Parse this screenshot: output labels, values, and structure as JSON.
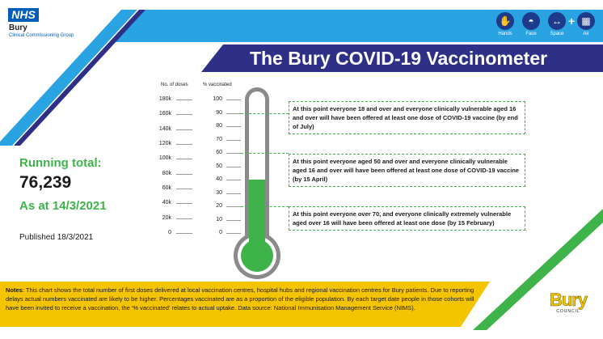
{
  "header": {
    "nhs_badge": "NHS",
    "org_name": "Bury",
    "org_sub": "Clinical Commissioning Group",
    "title": "The Bury COVID-19 Vaccinometer"
  },
  "safety_icons": [
    {
      "name": "hands-icon",
      "glyph": "✋",
      "caption": "Hands"
    },
    {
      "name": "face-icon",
      "glyph": "◓",
      "caption": "Face"
    },
    {
      "name": "space-icon",
      "glyph": "↔",
      "caption": "Space"
    },
    {
      "name": "air-icon",
      "glyph": "▦",
      "caption": "Air"
    }
  ],
  "plus_sign": "+",
  "summary": {
    "running_label": "Running total:",
    "running_value": "76,239",
    "as_at": "As at 14/3/2021",
    "published": "Published 18/3/2021"
  },
  "gauge": {
    "doses_header": "No. of doses",
    "percent_header": "% vaccinated",
    "dose_ticks": [
      "180k",
      "160k",
      "140k",
      "120k",
      "100k",
      "80k",
      "60k",
      "40k",
      "20k",
      "0"
    ],
    "percent_ticks": [
      "100",
      "90",
      "80",
      "70",
      "60",
      "50",
      "40",
      "30",
      "20",
      "10",
      "0"
    ],
    "fill_percent": 40
  },
  "annotations": [
    {
      "at_percent": 90,
      "text": "At this point everyone 18 and over and everyone clinically vulnerable aged 16 and over will have been offered at least one dose of COVID-19 vaccine (by end of July)"
    },
    {
      "at_percent": 60,
      "text": "At this point everyone aged 50 and over and everyone clinically vulnerable aged 16 and over will have been offered at least one dose of COVID-19 vaccine (by 15 April)"
    },
    {
      "at_percent": 20,
      "text": "At this point everyone over 70, and everyone clinically extremely vulnerable aged over 16 will have been offered at least one dose (by 15 February)"
    }
  ],
  "notes": {
    "label": "Notes",
    "text": ": This chart shows the total number of first doses delivered at local vaccination centres, hospital hubs and regional vaccination centres for Bury patients. Due to reporting delays actual numbers vaccinated are likely to be higher.  Percentages vaccinated are as a proportion of the eligible population.  By each target date people in those cohorts will have been invited to receive a vaccination, the '% vaccinated' relates to actual uptake.  Data source: National Immunisation Management Service (NIMS)."
  },
  "footer_logo": {
    "word": "Bury",
    "sub": "COUNCIL"
  },
  "colors": {
    "blue_band": "#29a3e2",
    "navy_band": "#2e2f86",
    "green": "#3db34a",
    "yellow": "#f5c400",
    "nhs_blue": "#005eb8"
  }
}
